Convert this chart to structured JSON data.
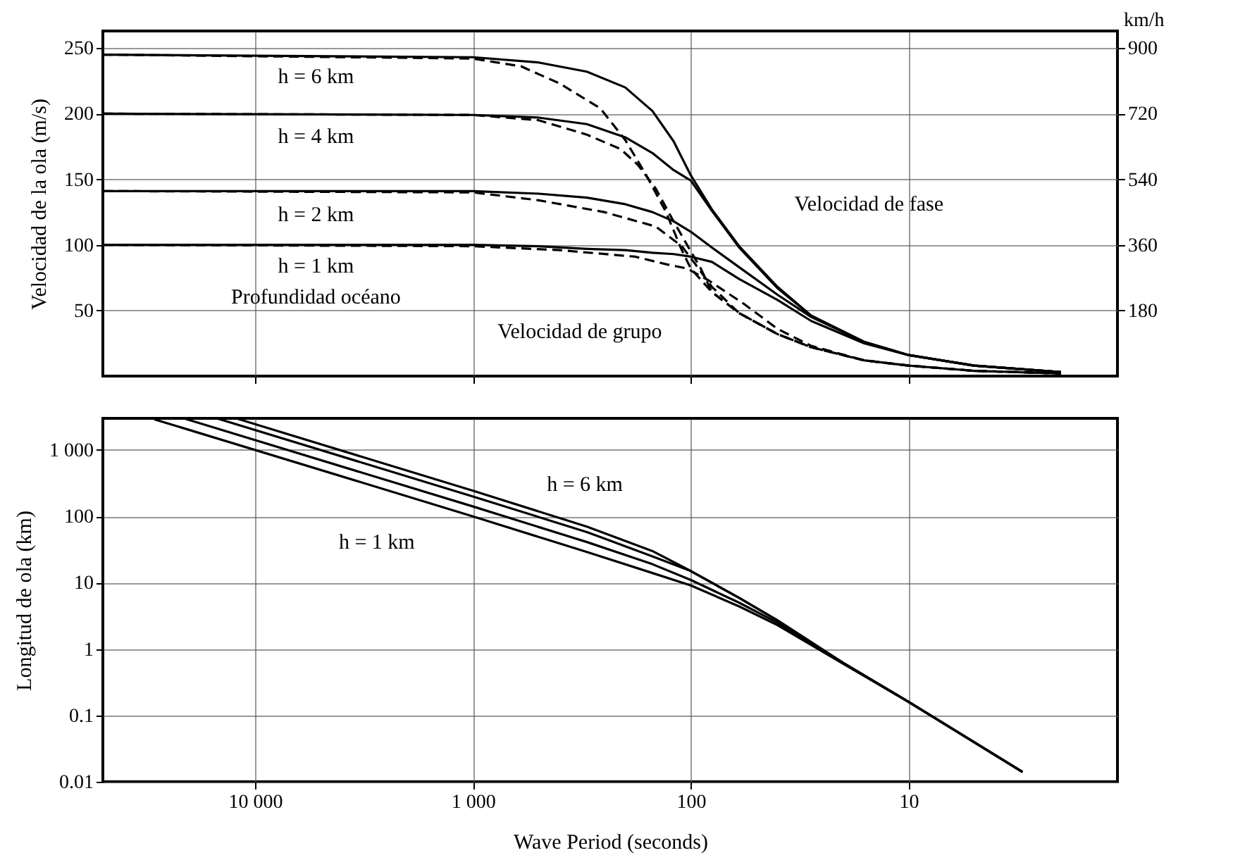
{
  "chart_data": [
    {
      "type": "line",
      "ylabel": "Velocidad de la ola (m/s)",
      "y2label": "km/h",
      "log": "x",
      "grid": true,
      "tick_labels": "y",
      "xlim": [
        50000,
        1.1
      ],
      "ylim": [
        0,
        263
      ],
      "yticks": [
        50,
        100,
        150,
        200,
        250
      ],
      "y2lim": [
        0,
        947
      ],
      "y2ticks": [
        180,
        360,
        540,
        720,
        900
      ],
      "series": [
        {
          "color": "#000000",
          "line_style": "solid",
          "x": [
            50000,
            1000,
            500,
            300,
            200,
            150,
            120,
            100,
            80,
            60,
            40,
            28,
            16,
            10,
            5,
            2
          ],
          "values": [
            245,
            243,
            239,
            232,
            220,
            202,
            179,
            153,
            127,
            99,
            68,
            46,
            26,
            16,
            8,
            3
          ]
        },
        {
          "color": "#000000",
          "line_style": "solid",
          "x": [
            50000,
            1000,
            500,
            300,
            200,
            150,
            120,
            100,
            80,
            60,
            40,
            28,
            16,
            10,
            5,
            2
          ],
          "values": [
            200,
            199,
            197,
            192,
            182,
            170,
            157,
            149,
            126,
            98,
            67,
            46,
            26,
            16,
            8,
            3
          ]
        },
        {
          "color": "#000000",
          "line_style": "solid",
          "x": [
            50000,
            1000,
            500,
            300,
            200,
            150,
            120,
            100,
            80,
            60,
            40,
            28,
            16,
            10,
            5,
            2
          ],
          "values": [
            141,
            141,
            139,
            136,
            131,
            125,
            118,
            110,
            98,
            83,
            62,
            45,
            26,
            16,
            8,
            3
          ]
        },
        {
          "color": "#000000",
          "line_style": "solid",
          "x": [
            50000,
            1000,
            500,
            300,
            200,
            150,
            120,
            100,
            80,
            60,
            40,
            28,
            16,
            10,
            5,
            2
          ],
          "values": [
            100,
            100,
            99,
            97,
            96,
            94,
            93,
            91,
            87,
            74,
            58,
            42,
            25,
            16,
            8,
            3
          ]
        },
        {
          "color": "#000000",
          "line_style": "dashed",
          "x": [
            50000,
            1000,
            600,
            400,
            260,
            200,
            160,
            130,
            110,
            100,
            80,
            60,
            40,
            28,
            16,
            10,
            5,
            2
          ],
          "values": [
            245,
            242,
            236,
            223,
            204,
            180,
            153,
            125,
            96,
            82,
            64,
            48,
            32,
            22,
            12,
            8,
            4,
            2
          ]
        },
        {
          "color": "#000000",
          "line_style": "dashed",
          "x": [
            50000,
            1000,
            500,
            300,
            210,
            175,
            145,
            120,
            104,
            90,
            80,
            60,
            40,
            28,
            16,
            10,
            5,
            2
          ],
          "values": [
            200,
            199,
            195,
            184,
            173,
            161,
            143,
            118,
            100,
            82,
            64,
            48,
            32,
            22,
            12,
            8,
            4,
            2
          ]
        },
        {
          "color": "#000000",
          "line_style": "dashed",
          "x": [
            50000,
            1000,
            500,
            250,
            145,
            110,
            95,
            80,
            60,
            40,
            28,
            16,
            10,
            5,
            2
          ],
          "values": [
            141,
            140,
            134,
            125,
            114,
            99,
            85,
            68,
            48,
            32,
            22,
            12,
            8,
            4,
            2
          ]
        },
        {
          "color": "#000000",
          "line_style": "dashed",
          "x": [
            50000,
            1000,
            400,
            180,
            128,
            104,
            83,
            57,
            40,
            28,
            16,
            10,
            5,
            2
          ],
          "values": [
            100,
            99,
            96,
            91,
            85,
            82,
            73,
            55,
            36,
            23,
            12,
            8,
            4,
            2
          ]
        }
      ],
      "annotations": [
        "h = 6 km",
        "h = 4 km",
        "h = 2 km",
        "h = 1 km",
        "Profundidad océano",
        "Velocidad de grupo",
        "Velocidad de fase"
      ]
    },
    {
      "type": "line",
      "xlabel": "Wave Period (seconds)",
      "ylabel": "Longitud de ola (km)",
      "log": "xy",
      "grid": true,
      "xlim": [
        50000,
        1.1
      ],
      "xticks": [
        {
          "value": 10000,
          "label": "10 000"
        },
        {
          "value": 1000,
          "label": "1 000"
        },
        100,
        10
      ],
      "ylim": [
        0.01,
        3000
      ],
      "yticks": [
        0.01,
        0.1,
        1,
        10,
        100,
        {
          "value": 1000,
          "label": "1 000"
        }
      ],
      "series": [
        {
          "color": "#000000",
          "line_style": "solid",
          "x": [
            12000,
            1000,
            300,
            150,
            100,
            60,
            40,
            20,
            10,
            3
          ],
          "values": [
            2940,
            243,
            70,
            30,
            15,
            5.9,
            2.7,
            0.62,
            0.16,
            0.014
          ]
        },
        {
          "color": "#000000",
          "line_style": "solid",
          "x": [
            15000,
            1000,
            300,
            150,
            100,
            60,
            40,
            20,
            10,
            3
          ],
          "values": [
            3000,
            199,
            58,
            25,
            15,
            5.9,
            2.7,
            0.62,
            0.16,
            0.014
          ]
        },
        {
          "color": "#000000",
          "line_style": "solid",
          "x": [
            21000,
            1000,
            300,
            150,
            100,
            60,
            40,
            20,
            10,
            3
          ],
          "values": [
            2960,
            141,
            41,
            19,
            11,
            5,
            2.5,
            0.62,
            0.16,
            0.014
          ]
        },
        {
          "color": "#000000",
          "line_style": "solid",
          "x": [
            29000,
            1000,
            300,
            150,
            100,
            60,
            40,
            20,
            10,
            3
          ],
          "values": [
            2900,
            100,
            29,
            14,
            9.1,
            4.4,
            2.3,
            0.6,
            0.16,
            0.014
          ]
        }
      ],
      "annotations": [
        "h = 6 km",
        "h = 1 km"
      ]
    }
  ]
}
